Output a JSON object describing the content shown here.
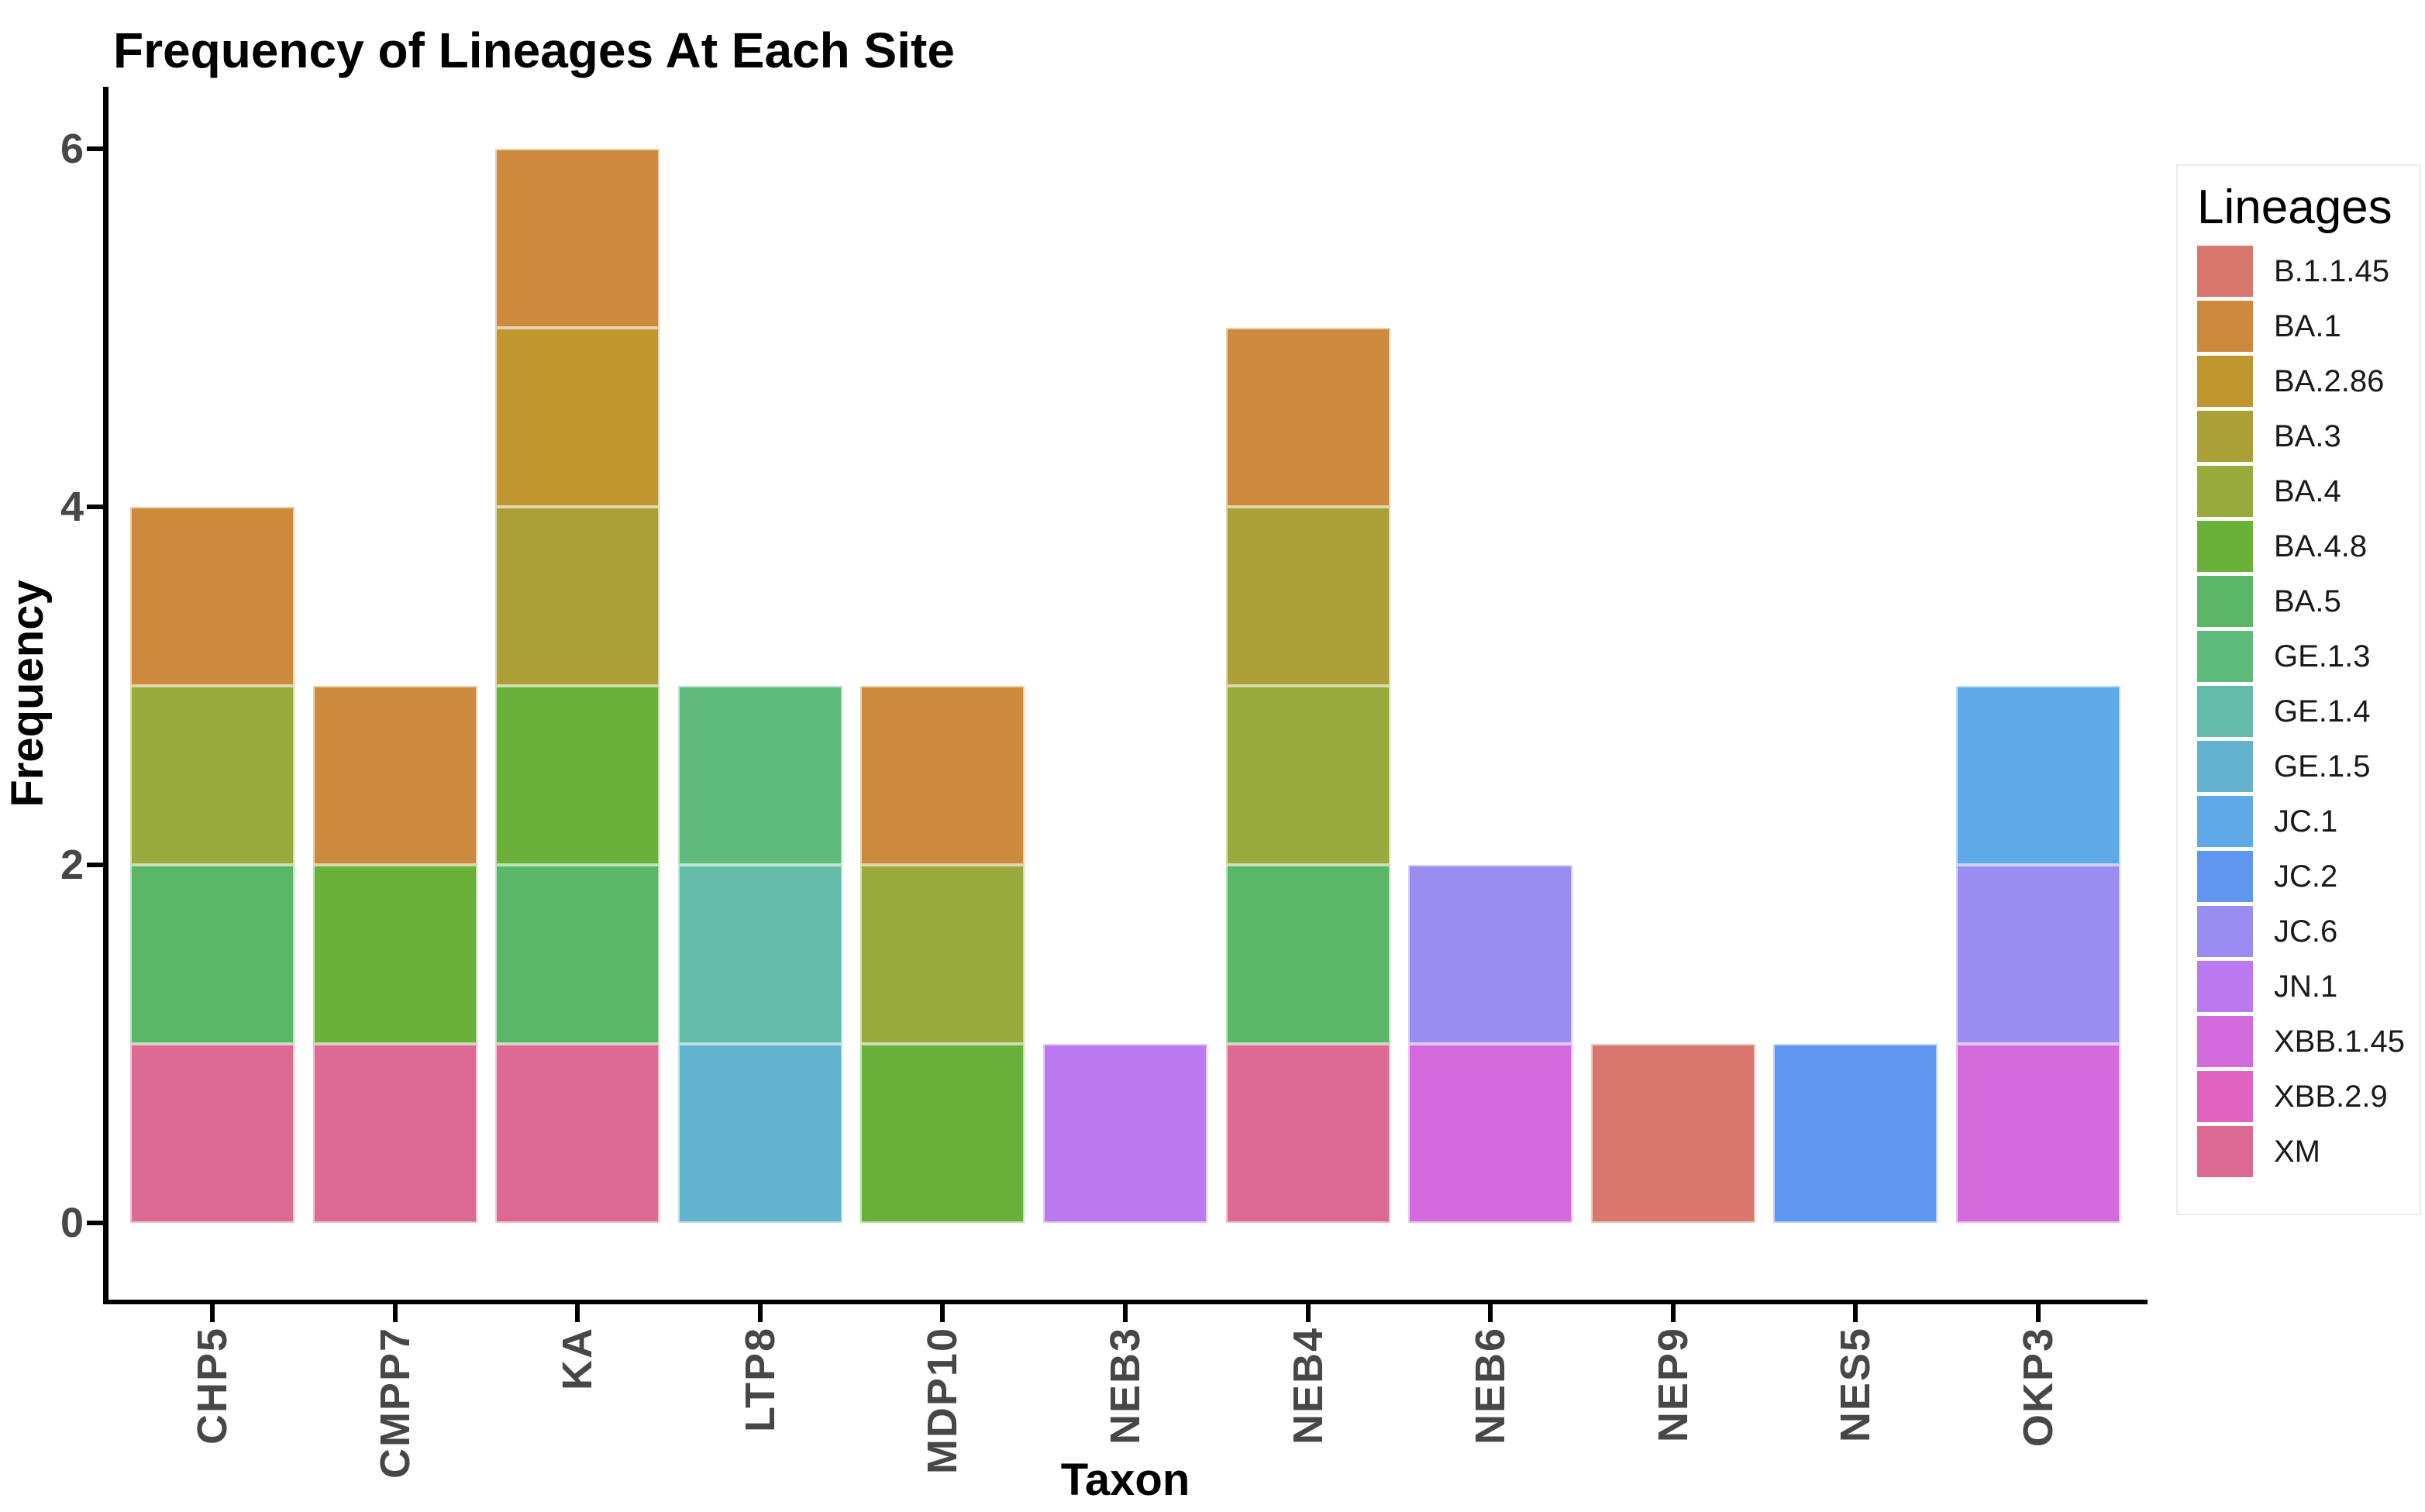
{
  "colors": {
    "background": "#ffffff",
    "axis_line": "#000000",
    "axis_text": "#474747",
    "title_text": "#000000",
    "legend_text": "#1a1a1a",
    "legend_border": "#ececec"
  },
  "chart_data": {
    "type": "bar",
    "stacked": true,
    "title": "Frequency of Lineages At Each Site",
    "xlabel": "Taxon",
    "ylabel": "Frequency",
    "legend_title": "Lineages",
    "legend_position": "right",
    "grid": false,
    "ylim": [
      0,
      6.3
    ],
    "yticks": [
      0,
      2,
      4,
      6
    ],
    "stack_order": "reverse of legend order (XM at bottom, B.1.1.45 at top)",
    "categories": [
      "CHP5",
      "CMPP7",
      "KA",
      "LTP8",
      "MDP10",
      "NEB3",
      "NEB4",
      "NEB6",
      "NEP9",
      "NES5",
      "OKP3"
    ],
    "series": [
      {
        "name": "B.1.1.45",
        "color": "#D8776D",
        "values": [
          0,
          0,
          0,
          0,
          0,
          0,
          0,
          0,
          1,
          0,
          0
        ]
      },
      {
        "name": "BA.1",
        "color": "#CD8A3C",
        "values": [
          1,
          1,
          1,
          0,
          1,
          0,
          1,
          0,
          0,
          0,
          0
        ]
      },
      {
        "name": "BA.2.86",
        "color": "#C0972F",
        "values": [
          0,
          0,
          1,
          0,
          0,
          0,
          0,
          0,
          0,
          0,
          0
        ]
      },
      {
        "name": "BA.3",
        "color": "#ABA038",
        "values": [
          0,
          0,
          1,
          0,
          0,
          0,
          1,
          0,
          0,
          0,
          0
        ]
      },
      {
        "name": "BA.4",
        "color": "#99AB3C",
        "values": [
          1,
          0,
          0,
          0,
          1,
          0,
          1,
          0,
          0,
          0,
          0
        ]
      },
      {
        "name": "BA.4.8",
        "color": "#69B138",
        "values": [
          0,
          1,
          1,
          0,
          1,
          0,
          0,
          0,
          0,
          0,
          0
        ]
      },
      {
        "name": "BA.5",
        "color": "#5BB768",
        "values": [
          1,
          0,
          1,
          0,
          0,
          0,
          1,
          0,
          0,
          0,
          0
        ]
      },
      {
        "name": "GE.1.3",
        "color": "#5EBB7C",
        "values": [
          0,
          0,
          0,
          1,
          0,
          0,
          0,
          0,
          0,
          0,
          0
        ]
      },
      {
        "name": "GE.1.4",
        "color": "#62BCA7",
        "values": [
          0,
          0,
          0,
          1,
          0,
          0,
          0,
          0,
          0,
          0,
          0
        ]
      },
      {
        "name": "GE.1.5",
        "color": "#63B3CE",
        "values": [
          0,
          0,
          0,
          1,
          0,
          0,
          0,
          0,
          0,
          0,
          0
        ]
      },
      {
        "name": "JC.1",
        "color": "#5FA9E8",
        "values": [
          0,
          0,
          0,
          0,
          0,
          0,
          0,
          0,
          0,
          0,
          1
        ]
      },
      {
        "name": "JC.2",
        "color": "#6095F0",
        "values": [
          0,
          0,
          0,
          0,
          0,
          0,
          0,
          0,
          0,
          1,
          0
        ]
      },
      {
        "name": "JC.6",
        "color": "#9B8CF1",
        "values": [
          0,
          0,
          0,
          0,
          0,
          0,
          0,
          1,
          0,
          0,
          1
        ]
      },
      {
        "name": "JN.1",
        "color": "#BD79F0",
        "values": [
          0,
          0,
          0,
          0,
          0,
          1,
          0,
          0,
          0,
          0,
          0
        ]
      },
      {
        "name": "XBB.1.45",
        "color": "#D46BDC",
        "values": [
          0,
          0,
          0,
          0,
          0,
          0,
          0,
          1,
          0,
          0,
          1
        ]
      },
      {
        "name": "XBB.2.9",
        "color": "#E063BF",
        "values": [
          0,
          0,
          0,
          0,
          0,
          0,
          0,
          0,
          0,
          0,
          0
        ]
      },
      {
        "name": "XM",
        "color": "#DC6A93",
        "values": [
          1,
          1,
          1,
          0,
          0,
          0,
          1,
          0,
          0,
          0,
          0
        ]
      }
    ],
    "totals": {
      "CHP5": 4,
      "CMPP7": 3,
      "KA": 6,
      "LTP8": 3,
      "MDP10": 3,
      "NEB3": 1,
      "NEB4": 5,
      "NEB6": 2,
      "NEP9": 1,
      "NES5": 1,
      "OKP3": 3
    }
  }
}
